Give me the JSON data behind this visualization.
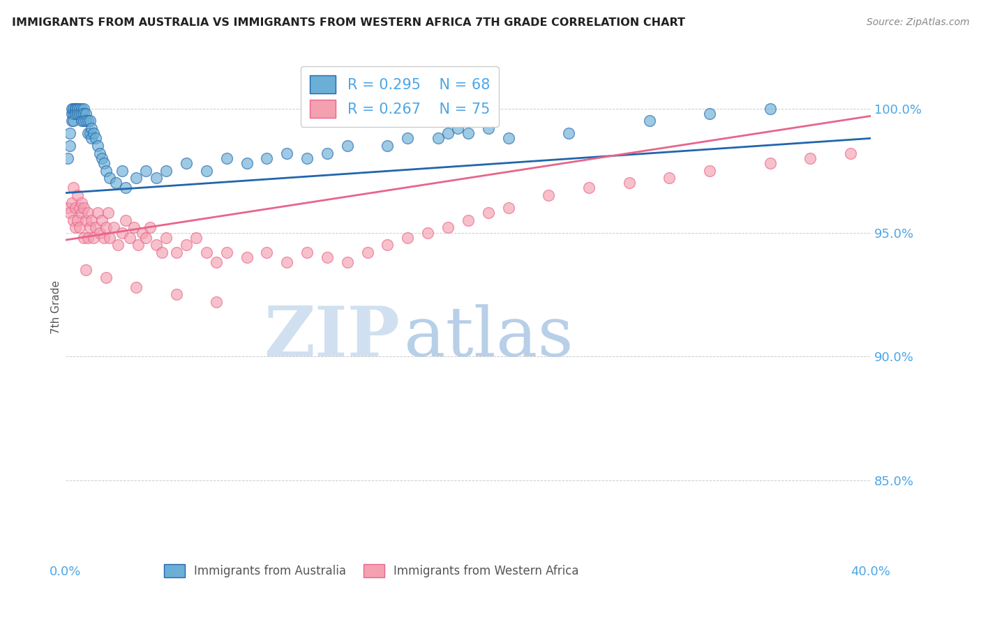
{
  "title": "IMMIGRANTS FROM AUSTRALIA VS IMMIGRANTS FROM WESTERN AFRICA 7TH GRADE CORRELATION CHART",
  "source_text": "Source: ZipAtlas.com",
  "ylabel": "7th Grade",
  "y_tick_labels": [
    "100.0%",
    "95.0%",
    "90.0%",
    "85.0%"
  ],
  "y_tick_values": [
    1.0,
    0.95,
    0.9,
    0.85
  ],
  "x_range": [
    0.0,
    0.4
  ],
  "y_range": [
    0.818,
    1.022
  ],
  "legend_R_australia": "R = 0.295",
  "legend_N_australia": "N = 68",
  "legend_R_africa": "R = 0.267",
  "legend_N_africa": "N = 75",
  "color_australia": "#6baed6",
  "color_africa": "#f4a0b0",
  "color_trendline_australia": "#2166ac",
  "color_trendline_africa": "#e8648a",
  "color_axis_labels": "#4da6e8",
  "color_title": "#222222",
  "color_source": "#888888",
  "watermark_zip": "ZIP",
  "watermark_atlas": "atlas",
  "watermark_color_zip": "#d0e0f0",
  "watermark_color_atlas": "#b8cfe8",
  "trendline_australia": [
    0.966,
    0.988
  ],
  "trendline_africa": [
    0.947,
    0.997
  ],
  "australia_x": [
    0.001,
    0.002,
    0.002,
    0.003,
    0.003,
    0.003,
    0.004,
    0.004,
    0.004,
    0.005,
    0.005,
    0.005,
    0.005,
    0.006,
    0.006,
    0.006,
    0.007,
    0.007,
    0.008,
    0.008,
    0.008,
    0.009,
    0.009,
    0.009,
    0.01,
    0.01,
    0.011,
    0.011,
    0.012,
    0.012,
    0.013,
    0.013,
    0.014,
    0.015,
    0.016,
    0.017,
    0.018,
    0.019,
    0.02,
    0.022,
    0.025,
    0.028,
    0.03,
    0.035,
    0.04,
    0.045,
    0.05,
    0.06,
    0.07,
    0.08,
    0.09,
    0.1,
    0.11,
    0.12,
    0.13,
    0.14,
    0.16,
    0.17,
    0.185,
    0.19,
    0.195,
    0.2,
    0.21,
    0.22,
    0.25,
    0.29,
    0.32,
    0.35
  ],
  "australia_y": [
    0.98,
    0.985,
    0.99,
    0.995,
    0.998,
    1.0,
    0.998,
    1.0,
    0.995,
    1.0,
    1.0,
    1.0,
    0.998,
    1.0,
    1.0,
    0.998,
    1.0,
    0.998,
    1.0,
    0.998,
    0.995,
    1.0,
    0.998,
    0.995,
    0.998,
    0.995,
    0.995,
    0.99,
    0.995,
    0.99,
    0.992,
    0.988,
    0.99,
    0.988,
    0.985,
    0.982,
    0.98,
    0.978,
    0.975,
    0.972,
    0.97,
    0.975,
    0.968,
    0.972,
    0.975,
    0.972,
    0.975,
    0.978,
    0.975,
    0.98,
    0.978,
    0.98,
    0.982,
    0.98,
    0.982,
    0.985,
    0.985,
    0.988,
    0.988,
    0.99,
    0.992,
    0.99,
    0.992,
    0.988,
    0.99,
    0.995,
    0.998,
    1.0
  ],
  "africa_x": [
    0.001,
    0.002,
    0.003,
    0.004,
    0.004,
    0.005,
    0.005,
    0.006,
    0.006,
    0.007,
    0.007,
    0.008,
    0.008,
    0.009,
    0.009,
    0.01,
    0.011,
    0.011,
    0.012,
    0.013,
    0.014,
    0.015,
    0.016,
    0.017,
    0.018,
    0.019,
    0.02,
    0.021,
    0.022,
    0.024,
    0.026,
    0.028,
    0.03,
    0.032,
    0.034,
    0.036,
    0.038,
    0.04,
    0.042,
    0.045,
    0.048,
    0.05,
    0.055,
    0.06,
    0.065,
    0.07,
    0.075,
    0.08,
    0.09,
    0.1,
    0.11,
    0.12,
    0.13,
    0.14,
    0.15,
    0.16,
    0.17,
    0.18,
    0.19,
    0.2,
    0.21,
    0.22,
    0.24,
    0.26,
    0.28,
    0.3,
    0.32,
    0.35,
    0.37,
    0.39,
    0.01,
    0.02,
    0.035,
    0.055,
    0.075
  ],
  "africa_y": [
    0.96,
    0.958,
    0.962,
    0.955,
    0.968,
    0.96,
    0.952,
    0.965,
    0.955,
    0.96,
    0.952,
    0.958,
    0.962,
    0.96,
    0.948,
    0.955,
    0.958,
    0.948,
    0.952,
    0.955,
    0.948,
    0.952,
    0.958,
    0.95,
    0.955,
    0.948,
    0.952,
    0.958,
    0.948,
    0.952,
    0.945,
    0.95,
    0.955,
    0.948,
    0.952,
    0.945,
    0.95,
    0.948,
    0.952,
    0.945,
    0.942,
    0.948,
    0.942,
    0.945,
    0.948,
    0.942,
    0.938,
    0.942,
    0.94,
    0.942,
    0.938,
    0.942,
    0.94,
    0.938,
    0.942,
    0.945,
    0.948,
    0.95,
    0.952,
    0.955,
    0.958,
    0.96,
    0.965,
    0.968,
    0.97,
    0.972,
    0.975,
    0.978,
    0.98,
    0.982,
    0.935,
    0.932,
    0.928,
    0.925,
    0.922
  ]
}
